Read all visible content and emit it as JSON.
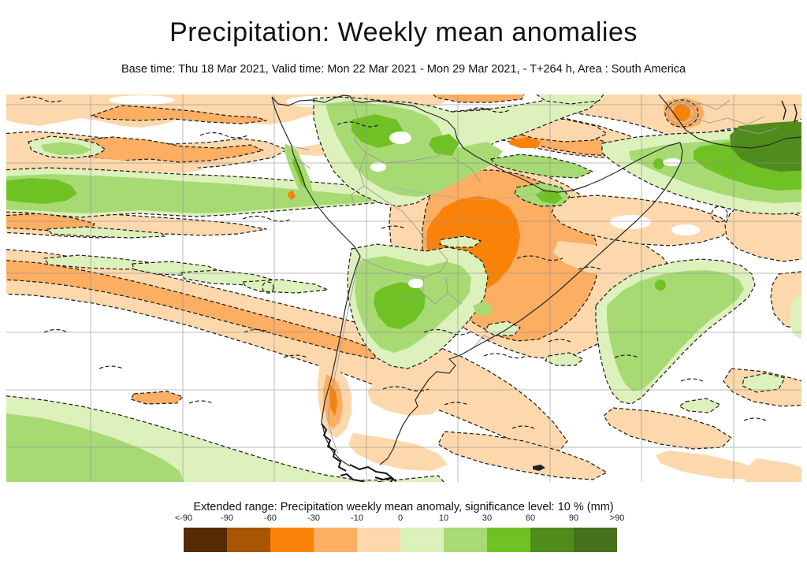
{
  "header": {
    "title": "Precipitation: Weekly mean anomalies",
    "subtitle": "Base time: Thu 18 Mar 2021, Valid time: Mon 22 Mar 2021 - Mon 29 Mar 2021, - T+264 h, Area : South America"
  },
  "legend": {
    "title": "Extended range: Precipitation weekly mean anomaly, significance level: 10 % (mm)",
    "tick_labels": [
      "<-90",
      "-90",
      "-60",
      "-30",
      "-10",
      "0",
      "10",
      "30",
      "60",
      "90",
      ">90"
    ],
    "colors": [
      "#552b04",
      "#a85504",
      "#fb8208",
      "#fcae63",
      "#fcd8ac",
      "#dcf1bb",
      "#a8da74",
      "#70c224",
      "#4f8c1b",
      "#47701a"
    ]
  },
  "map": {
    "palette": {
      "o1": "#fcd8ac",
      "o2": "#fcae63",
      "o3": "#fb8208",
      "g1": "#dcf1bb",
      "g2": "#a8da74",
      "g3": "#70c224",
      "g4": "#4f8c1b",
      "grid": "#8f8f8f",
      "coast": "#2a2a2a",
      "border": "#9a9a9a",
      "contour": "#1b1b1b"
    }
  },
  "chart_data": {
    "type": "heatmap",
    "title": "Precipitation: Weekly mean anomalies",
    "subtitle": "Base time: Thu 18 Mar 2021, Valid time: Mon 22 Mar 2021 - Mon 29 Mar 2021, - T+264 h, Area : South America",
    "variable": "Extended range: Precipitation weekly mean anomaly",
    "significance_level": "10 %",
    "units": "mm",
    "scale_breaks": [
      -90,
      -60,
      -30,
      -10,
      0,
      10,
      30,
      60,
      90
    ],
    "scale_colors": [
      "#552b04",
      "#a85504",
      "#fb8208",
      "#fcae63",
      "#fcd8ac",
      "#dcf1bb",
      "#a8da74",
      "#70c224",
      "#4f8c1b",
      "#47701a"
    ],
    "legend_position": "bottom",
    "grid": true,
    "regions": [
      {
        "area": "central Brazil",
        "anomaly_mm": "-60 to -30",
        "note": "large dry anomaly with strong orange core"
      },
      {
        "area": "northern South America (Colombia/Venezuela/Guianas)",
        "anomaly_mm": "+30 to +60",
        "note": "wet anomaly"
      },
      {
        "area": "equatorial Atlantic / NE coast",
        "anomaly_mm": "+30 to +90",
        "note": "dark green band"
      },
      {
        "area": "Paraguay / SE Bolivia",
        "anomaly_mm": "+30 to +60",
        "note": "wet blob with green core"
      },
      {
        "area": "eastern Pacific bands",
        "anomaly_mm": "-30 to -10",
        "note": "zonal dry bands with embedded -60 to -30 streaks"
      },
      {
        "area": "SE Pacific diagonal band",
        "anomaly_mm": "-30 to -10",
        "note": "long dry band toward Patagonia"
      },
      {
        "area": "south Pacific (bottom-left)",
        "anomaly_mm": "+10 to +30",
        "note": "wet band"
      },
      {
        "area": "South Atlantic diagonal",
        "anomaly_mm": "+10 to +30",
        "note": "wet band"
      },
      {
        "area": "southern Andes strip",
        "anomaly_mm": "-60 to -30",
        "note": "narrow strong dry strip"
      }
    ]
  }
}
